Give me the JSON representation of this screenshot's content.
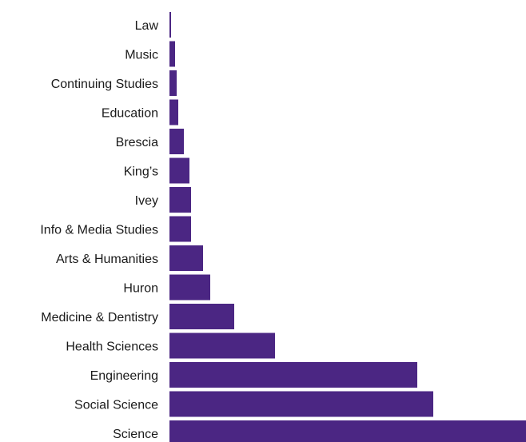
{
  "chart_data": {
    "type": "bar",
    "orientation": "horizontal",
    "title": "",
    "xlabel": "",
    "ylabel": "",
    "categories": [
      "Law",
      "Music",
      "Continuing Studies",
      "Education",
      "Brescia",
      "King’s",
      "Ivey",
      "Info & Media Studies",
      "Arts & Humanities",
      "Huron",
      "Medicine & Dentistry",
      "Health Sciences",
      "Engineering",
      "Social Science",
      "Science"
    ],
    "values": [
      2,
      7,
      9,
      11,
      18,
      25,
      27,
      27,
      42,
      51,
      81,
      132,
      310,
      330,
      460
    ],
    "xlim": [
      0,
      445
    ],
    "grid": false,
    "legend": "none",
    "bar_color": "#4b2683",
    "label_color": "#1a1a1a"
  }
}
